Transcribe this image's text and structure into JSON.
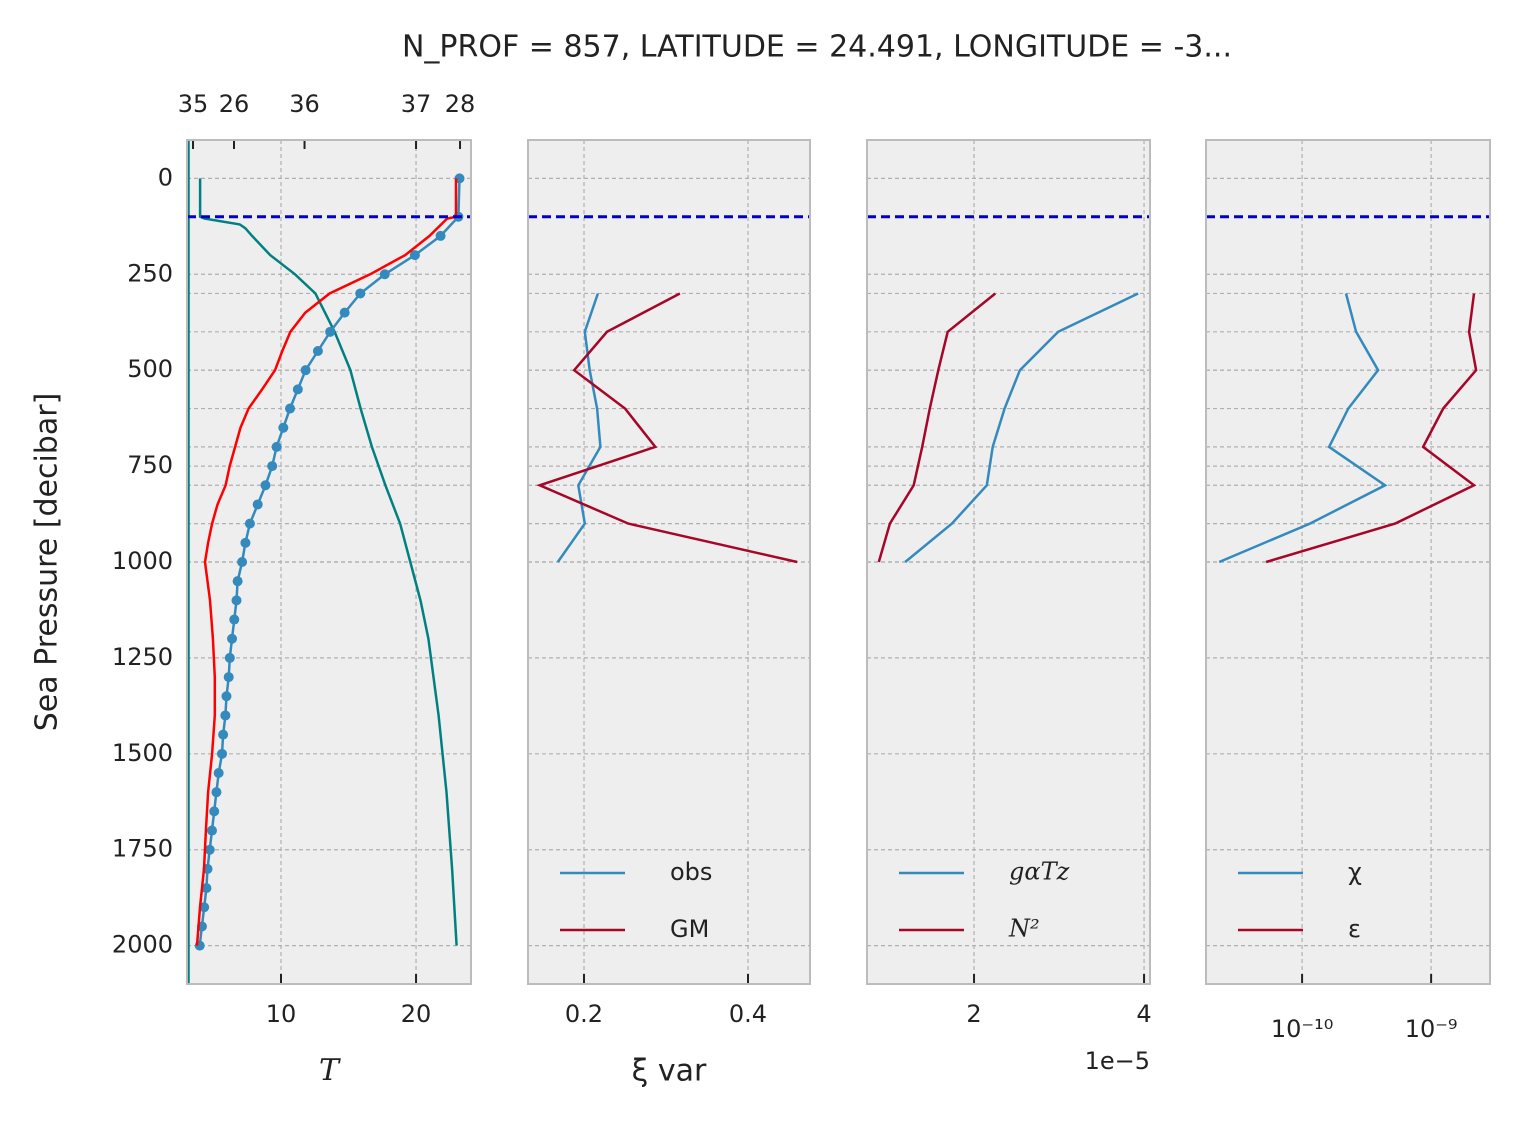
{
  "chart_data": [
    {
      "type": "line",
      "title": "N_PROF = 857, LATITUDE = 24.491, LONGITUDE = -3...",
      "ylabel": "Sea Pressure [decibar]",
      "xlabel": "T",
      "ylim": [
        -100,
        2100
      ],
      "y_inverted": true,
      "yticks": [
        0,
        250,
        500,
        750,
        1000,
        1250,
        1500,
        1750,
        2000
      ],
      "show_ytick_labels": true,
      "xlim": [
        3.04,
        24.07
      ],
      "xticks": [
        10,
        20
      ],
      "x2lim": [
        34.946,
        37.493
      ],
      "x2ticks": [
        35,
        36,
        37
      ],
      "x3lim": [
        25.584,
        28.097
      ],
      "x3ticks": [
        26,
        28
      ],
      "grid": true,
      "mld": 100,
      "series": [
        {
          "color": "#008080",
          "axis": "x3",
          "pressure": [
            0,
            100,
            105,
            120,
            130,
            150,
            200,
            250,
            300,
            400,
            500,
            600,
            700,
            800,
            900,
            1000,
            1100,
            1200,
            1400,
            1600,
            1800,
            2000
          ],
          "values": [
            25.7,
            25.7,
            25.74,
            26.05,
            26.1,
            26.16,
            26.32,
            26.54,
            26.72,
            26.89,
            27.03,
            27.12,
            27.22,
            27.34,
            27.47,
            27.56,
            27.65,
            27.72,
            27.81,
            27.88,
            27.93,
            27.97
          ]
        },
        {
          "color": "#348abd",
          "axis": "x2",
          "marker": true,
          "pressure": [
            0,
            100,
            150,
            200,
            250,
            300,
            350,
            400,
            450,
            500,
            550,
            600,
            650,
            700,
            750,
            800,
            850,
            900,
            950,
            1000,
            1050,
            1100,
            1150,
            1200,
            1250,
            1300,
            1350,
            1400,
            1450,
            1500,
            1550,
            1600,
            1650,
            1700,
            1750,
            1800,
            1850,
            1900,
            1950,
            2000
          ],
          "values": [
            37.39,
            37.38,
            37.22,
            36.99,
            36.72,
            36.5,
            36.36,
            36.23,
            36.12,
            36.01,
            35.94,
            35.87,
            35.81,
            35.75,
            35.71,
            35.65,
            35.58,
            35.51,
            35.47,
            35.44,
            35.4,
            35.39,
            35.37,
            35.35,
            35.33,
            35.32,
            35.3,
            35.29,
            35.27,
            35.26,
            35.23,
            35.21,
            35.19,
            35.17,
            35.15,
            35.13,
            35.12,
            35.1,
            35.08,
            35.06
          ]
        },
        {
          "color": "#ff0000",
          "pressure": [
            0,
            100,
            105,
            150,
            200,
            250,
            300,
            350,
            400,
            450,
            500,
            550,
            600,
            650,
            700,
            750,
            800,
            850,
            900,
            950,
            1000,
            1100,
            1200,
            1300,
            1400,
            1500,
            1600,
            1700,
            1800,
            1900,
            2000
          ],
          "values": [
            22.96,
            22.96,
            22.3,
            21.0,
            19.2,
            16.6,
            13.6,
            11.8,
            10.7,
            10.1,
            9.56,
            8.6,
            7.6,
            7.0,
            6.6,
            6.2,
            5.9,
            5.3,
            4.9,
            4.6,
            4.37,
            4.74,
            4.96,
            5.1,
            5.1,
            4.9,
            4.6,
            4.44,
            4.3,
            4.0,
            3.78
          ]
        }
      ]
    },
    {
      "type": "line",
      "xlabel": "ξ var",
      "ylim": [
        -100,
        2100
      ],
      "y_inverted": true,
      "yticks": [
        0,
        250,
        500,
        750,
        1000,
        1250,
        1500,
        1750,
        2000
      ],
      "show_ytick_labels": false,
      "xlim": [
        0.1317,
        0.4756
      ],
      "xticks": [
        0.2,
        0.4
      ],
      "grid": true,
      "mld": 100,
      "legend": "lower left",
      "pressure": [
        300,
        400,
        500,
        600,
        700,
        800,
        900,
        1000
      ],
      "series": [
        {
          "name": "obs",
          "color": "#348abd",
          "values": [
            0.217,
            0.201,
            0.207,
            0.216,
            0.22,
            0.193,
            0.201,
            0.168
          ]
        },
        {
          "name": "GM",
          "color": "#a60628",
          "values": [
            0.317,
            0.228,
            0.188,
            0.25,
            0.287,
            0.146,
            0.254,
            0.46
          ]
        }
      ]
    },
    {
      "type": "line",
      "x_offset_label": "1e−5",
      "ylim": [
        -100,
        2100
      ],
      "y_inverted": true,
      "yticks": [
        0,
        250,
        500,
        750,
        1000,
        1250,
        1500,
        1750,
        2000
      ],
      "show_ytick_labels": false,
      "xlim": [
        0.741,
        4.07
      ],
      "xticks": [
        2,
        4
      ],
      "grid": true,
      "mld": 100,
      "legend": "lower left",
      "legend_math": true,
      "pressure": [
        300,
        400,
        500,
        600,
        700,
        800,
        900,
        1000
      ],
      "series": [
        {
          "name": "gαTz",
          "color": "#348abd",
          "values": [
            3.93,
            2.99,
            2.54,
            2.36,
            2.22,
            2.15,
            1.74,
            1.19
          ]
        },
        {
          "name": "N²",
          "color": "#a60628",
          "values": [
            2.25,
            1.69,
            1.58,
            1.48,
            1.39,
            1.29,
            1.01,
            0.88
          ]
        }
      ]
    },
    {
      "type": "line",
      "xscale": "log",
      "ylim": [
        -100,
        2100
      ],
      "y_inverted": true,
      "yticks": [
        0,
        250,
        500,
        750,
        1000,
        1250,
        1500,
        1750,
        2000
      ],
      "show_ytick_labels": false,
      "xlim": [
        1.8e-11,
        2.86e-09
      ],
      "xticks": [
        {
          "value": 1e-10,
          "label": "10⁻¹⁰"
        },
        {
          "value": 1e-09,
          "label": "10⁻⁹"
        }
      ],
      "grid": true,
      "mld": 100,
      "legend": "lower left",
      "pressure": [
        300,
        400,
        500,
        600,
        700,
        800,
        900,
        1000
      ],
      "series": [
        {
          "name": "χ",
          "color": "#348abd",
          "values": [
            2.19e-10,
            2.62e-10,
            3.88e-10,
            2.28e-10,
            1.62e-10,
            4.4e-10,
            1.15e-10,
            2.28e-11
          ]
        },
        {
          "name": "ε",
          "color": "#a60628",
          "values": [
            2.15e-09,
            1.97e-09,
            2.23e-09,
            1.24e-09,
            8.67e-10,
            2.15e-09,
            5.26e-10,
            5.26e-11
          ]
        }
      ]
    }
  ]
}
